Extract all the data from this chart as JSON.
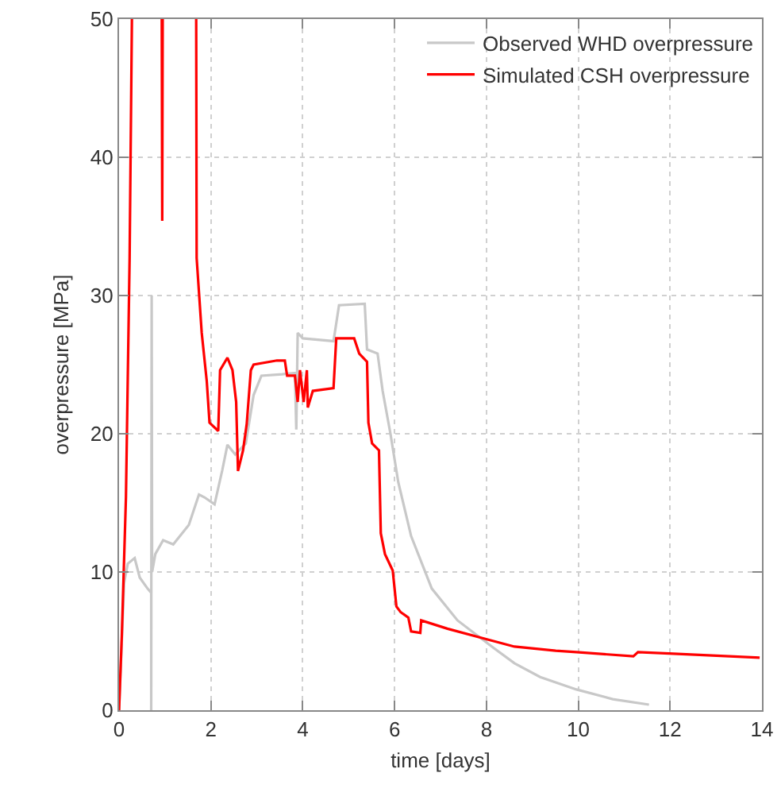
{
  "chart_data": {
    "type": "line",
    "xlabel": "time [days]",
    "ylabel": "overpressure [MPa]",
    "xlim": [
      0,
      14
    ],
    "xticks": [
      0,
      2,
      4,
      6,
      8,
      10,
      12,
      14
    ],
    "ylim": [
      0,
      50
    ],
    "yticks": [
      0,
      10,
      20,
      30,
      40,
      50
    ],
    "grid": true,
    "legend": "top right",
    "line_style": "solid",
    "marker": "none",
    "series": [
      {
        "name": "Observed WHD overpressure",
        "color": "#c8c8c8",
        "x": [
          0,
          0.11,
          0.19,
          0.34,
          0.45,
          0.62,
          0.7,
          0.7,
          0.71,
          0.72,
          0.79,
          0.96,
          1.18,
          1.52,
          1.74,
          1.86,
          2.08,
          2.25,
          2.36,
          2.53,
          2.76,
          2.93,
          3.1,
          3.55,
          3.83,
          3.86,
          3.89,
          4.0,
          4.67,
          4.79,
          5.35,
          5.4,
          5.63,
          5.74,
          5.91,
          6.08,
          6.36,
          6.81,
          7.37,
          8.16,
          8.61,
          9.17,
          9.96,
          10.75,
          11.54
        ],
        "values": [
          0,
          9.2,
          10.6,
          11,
          9.6,
          8.8,
          8.5,
          0,
          30,
          10,
          11.3,
          12.3,
          12,
          13.4,
          15.6,
          15.4,
          14.9,
          17.4,
          19.2,
          18.5,
          19.3,
          22.8,
          24.2,
          24.3,
          24.4,
          20.3,
          27.3,
          26.9,
          26.7,
          29.3,
          29.4,
          26.1,
          25.8,
          23.1,
          20,
          16.5,
          12.6,
          8.8,
          6.5,
          4.5,
          3.4,
          2.4,
          1.5,
          0.8,
          0.4
        ]
      },
      {
        "name": "Simulated CSH overpressure",
        "color": "#ff0000",
        "x": [
          0,
          0.06,
          0.15,
          0.23,
          0.28,
          0.29,
          0.93,
          0.94,
          0.95,
          0.96,
          1.68,
          1.69,
          1.8,
          1.91,
          1.97,
          2.16,
          2.2,
          2.36,
          2.47,
          2.55,
          2.59,
          2.7,
          2.78,
          2.87,
          2.93,
          3.44,
          3.61,
          3.66,
          3.83,
          3.89,
          3.94,
          4.02,
          4.09,
          4.11,
          4.22,
          4.67,
          4.73,
          5.12,
          5.23,
          5.4,
          5.43,
          5.51,
          5.66,
          5.7,
          5.79,
          5.96,
          6.04,
          6.13,
          6.3,
          6.36,
          6.56,
          6.58,
          7.15,
          7.93,
          8.61,
          9.51,
          9.96,
          11.2,
          11.3,
          11.98,
          13.95
        ],
        "values": [
          0,
          5.4,
          15.4,
          32.7,
          50,
          null,
          50,
          35.4,
          50,
          null,
          50,
          32.7,
          27.3,
          23.8,
          20.8,
          20.2,
          24.6,
          25.5,
          24.6,
          22.3,
          17.3,
          18.8,
          20.7,
          24.6,
          25,
          25.3,
          25.3,
          24.2,
          24.2,
          22.3,
          24.6,
          22.3,
          24.6,
          21.9,
          23.1,
          23.3,
          26.9,
          26.9,
          25.8,
          25.2,
          20.8,
          19.3,
          18.8,
          12.8,
          11.3,
          10.1,
          7.5,
          7.1,
          6.7,
          5.7,
          5.6,
          6.5,
          5.9,
          5.2,
          4.6,
          4.3,
          4.2,
          3.9,
          4.2,
          4.1,
          3.8
        ]
      }
    ]
  }
}
